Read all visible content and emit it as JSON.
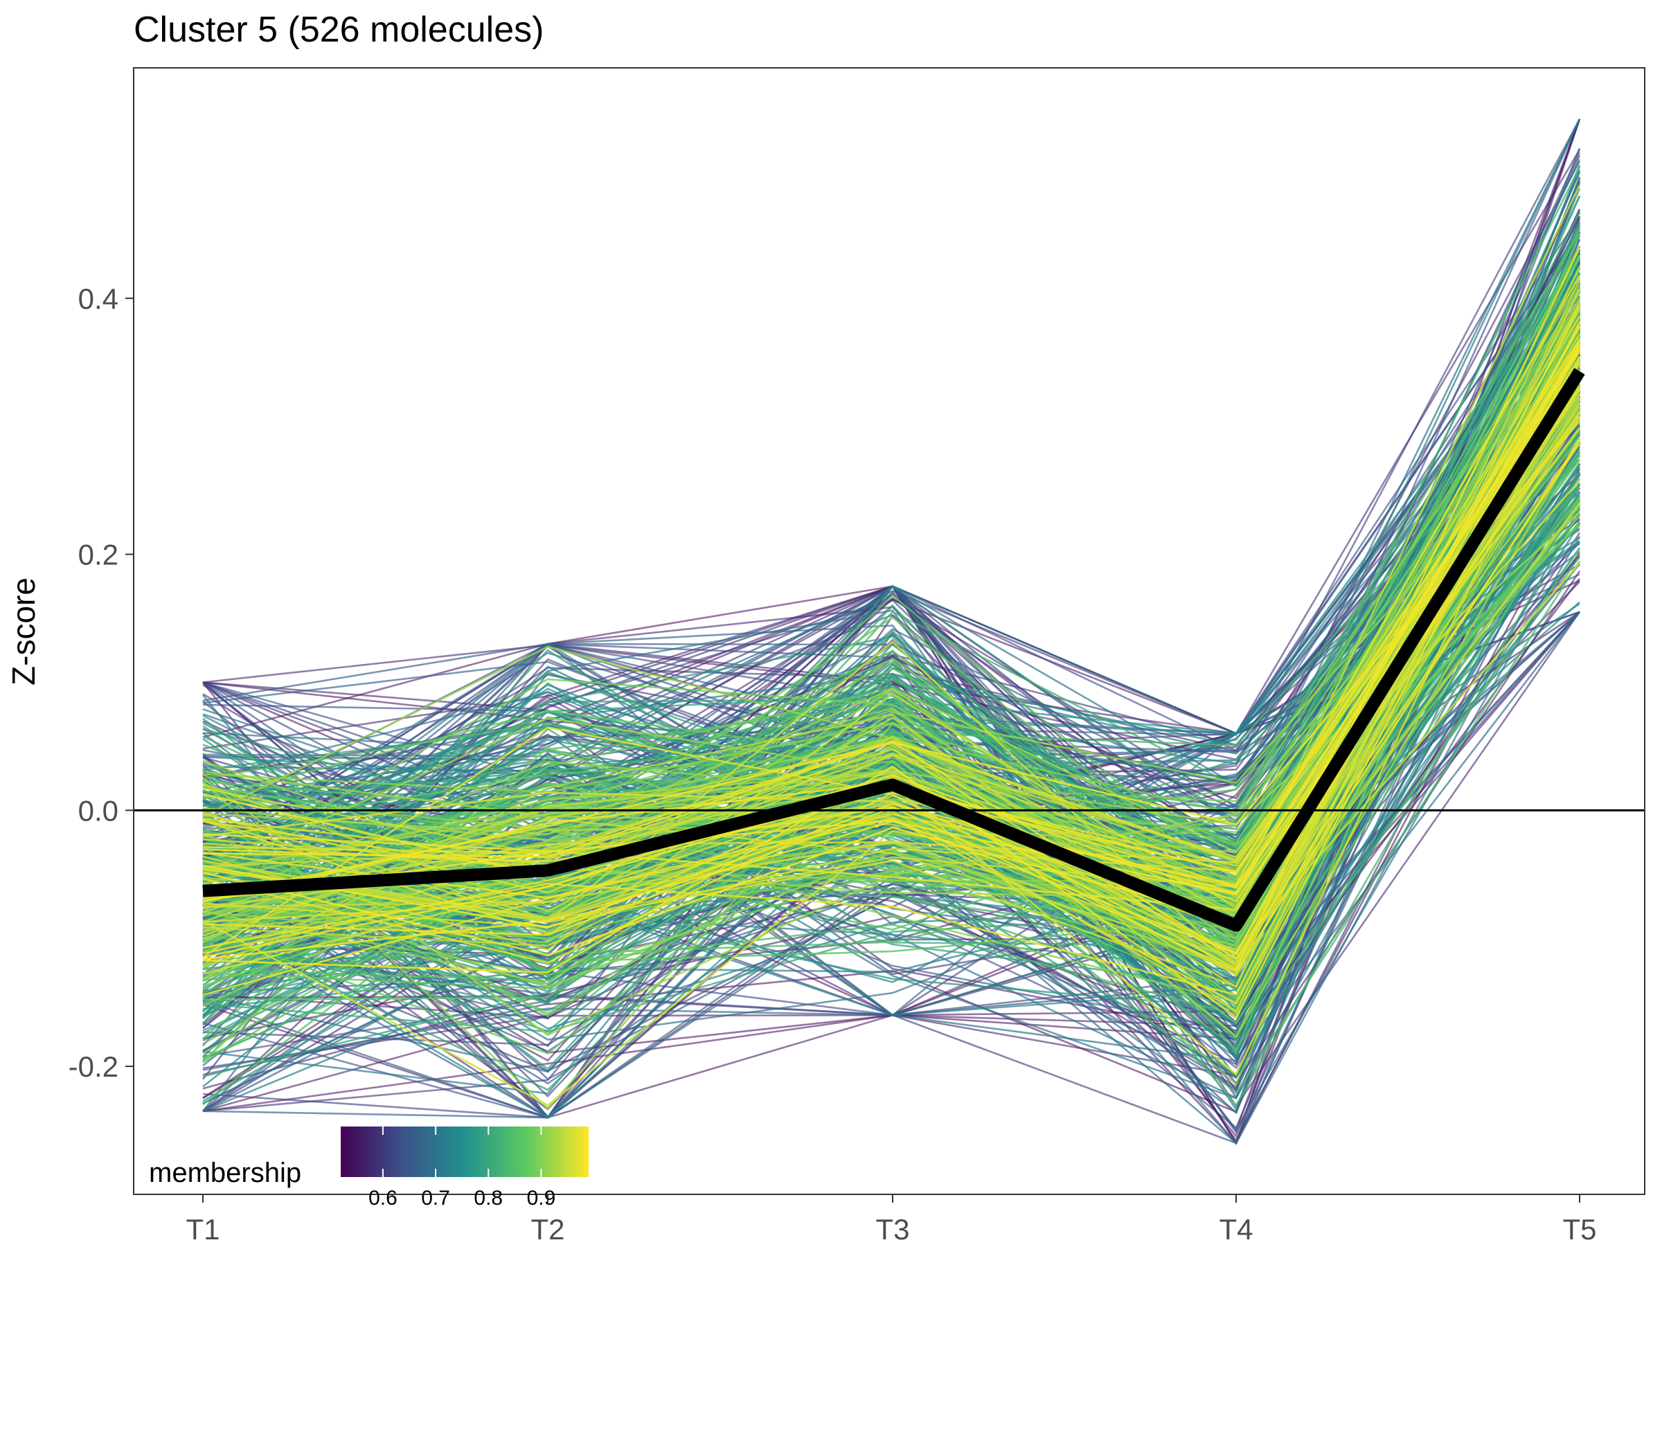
{
  "chart_data": {
    "type": "line",
    "title": "Cluster 5 (526 molecules)",
    "xlabel": "",
    "ylabel": "Z-score",
    "categories": [
      "T1",
      "T2",
      "T3",
      "T4",
      "T5"
    ],
    "ylim": [
      -0.3,
      0.58
    ],
    "yticks": [
      -0.2,
      0.0,
      0.2,
      0.4
    ],
    "ytick_labels": [
      "-0.2",
      "0.0",
      "0.2",
      "0.4"
    ],
    "zero_line": 0.0,
    "molecule_count": 526,
    "centroid": {
      "values": [
        -0.063,
        -0.047,
        0.02,
        -0.09,
        0.343
      ],
      "color": "#000000"
    },
    "profile_spread": {
      "min": [
        -0.235,
        -0.24,
        -0.16,
        -0.26,
        0.155
      ],
      "max": [
        0.1,
        0.13,
        0.175,
        0.06,
        0.54
      ]
    },
    "legend": {
      "title": "membership",
      "position": "bottom-left",
      "range": [
        0.52,
        0.99
      ],
      "ticks": [
        0.6,
        0.7,
        0.8,
        0.9
      ],
      "tick_labels": [
        "0.6",
        "0.7",
        "0.8",
        "0.9"
      ],
      "colors": [
        "#440154",
        "#3b528b",
        "#21918c",
        "#5ec962",
        "#fde725"
      ]
    },
    "grid": false,
    "colors": {
      "panel_border": "#333333",
      "tick_text": "#4d4d4d"
    }
  }
}
